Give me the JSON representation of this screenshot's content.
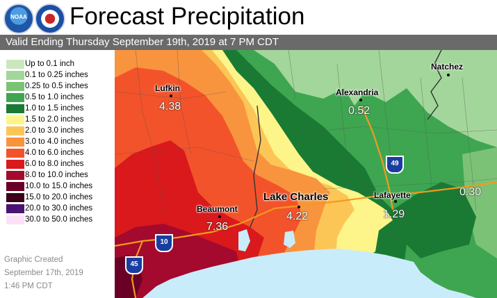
{
  "header": {
    "title": "Forecast Precipitation",
    "logos": [
      {
        "name": "noaa-logo",
        "text": "NOAA"
      },
      {
        "name": "nws-logo",
        "text": ""
      }
    ]
  },
  "subtitle": "Valid Ending Thursday September 19th, 2019 at 7 PM CDT",
  "legend": [
    {
      "label": "Up to 0.1 inch",
      "color": "#c9e8c0"
    },
    {
      "label": "0.1 to 0.25 inches",
      "color": "#a3d69b"
    },
    {
      "label": "0.25 to 0.5 inches",
      "color": "#7cc276"
    },
    {
      "label": "0.5 to 1.0 inches",
      "color": "#3ea651"
    },
    {
      "label": "1.0 to 1.5 inches",
      "color": "#1a7a34"
    },
    {
      "label": "1.5 to 2.0 inches",
      "color": "#fdf58a"
    },
    {
      "label": "2.0 to 3.0 inches",
      "color": "#fcc656"
    },
    {
      "label": "3.0 to 4.0 inches",
      "color": "#f9943e"
    },
    {
      "label": "4.0 to 6.0 inches",
      "color": "#f3532a"
    },
    {
      "label": "6.0 to 8.0 inches",
      "color": "#d9191c"
    },
    {
      "label": "8.0 to 10.0 inches",
      "color": "#a30a2e"
    },
    {
      "label": "10.0 to 15.0 inches",
      "color": "#6a0026"
    },
    {
      "label": "15.0 to 20.0 inches",
      "color": "#3d0018"
    },
    {
      "label": "20.0 to 30.0 inches",
      "color": "#4a1372"
    },
    {
      "label": "30.0 to 50.0 inches",
      "color": "#fde0f8"
    }
  ],
  "credit": [
    "Graphic Created",
    "September 17th, 2019",
    "1:46 PM CDT"
  ],
  "map": {
    "cities": [
      {
        "name": "Lufkin",
        "value": "4.38"
      },
      {
        "name": "Alexandria",
        "value": "0.52"
      },
      {
        "name": "Natchez",
        "value": ""
      },
      {
        "name": "Beaumont",
        "value": "7.36"
      },
      {
        "name": "Lake Charles",
        "value": "4.22"
      },
      {
        "name": "Lafayette",
        "value": "1.29"
      }
    ],
    "extra_values": [
      "0.30"
    ],
    "highways": [
      "49",
      "10",
      "45"
    ],
    "colors": {
      "water": "#c9ecfb",
      "highway": "#f39a1e",
      "border": "#555555"
    }
  }
}
